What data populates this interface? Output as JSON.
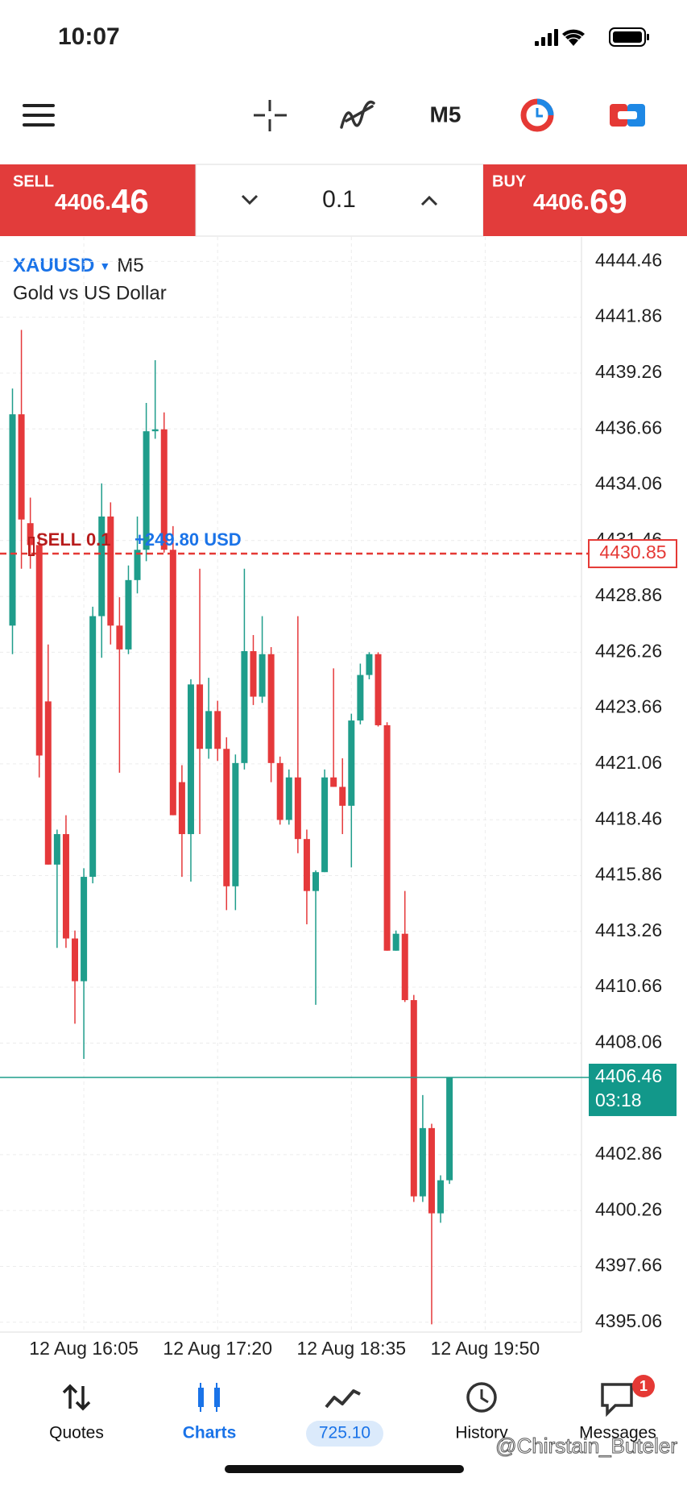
{
  "status": {
    "time": "10:07"
  },
  "toolbar": {
    "timeframe": "M5"
  },
  "trade": {
    "sell_label": "SELL",
    "sell_main": "4406.",
    "sell_pips": "46",
    "lot": "0.1",
    "buy_label": "BUY",
    "buy_main": "4406.",
    "buy_pips": "69"
  },
  "chart_data": {
    "type": "candlestick",
    "symbol": "XAUUSD",
    "timeframe": "M5",
    "subtitle": "Gold vs US Dollar",
    "colors": {
      "up": "#1f9d8b",
      "down": "#e5393b"
    },
    "x": [
      "12 Aug 15:25",
      "12 Aug 15:30",
      "12 Aug 15:35",
      "12 Aug 15:40",
      "12 Aug 15:45",
      "12 Aug 15:50",
      "12 Aug 15:55",
      "12 Aug 16:00",
      "12 Aug 16:05",
      "12 Aug 16:10",
      "12 Aug 16:15",
      "12 Aug 16:20",
      "12 Aug 16:25",
      "12 Aug 16:30",
      "12 Aug 16:35",
      "12 Aug 16:40",
      "12 Aug 16:45",
      "12 Aug 16:50",
      "12 Aug 16:55",
      "12 Aug 17:00",
      "12 Aug 17:05",
      "12 Aug 17:10",
      "12 Aug 17:15",
      "12 Aug 17:20",
      "12 Aug 17:25",
      "12 Aug 17:30",
      "12 Aug 17:35",
      "12 Aug 17:40",
      "12 Aug 17:45",
      "12 Aug 17:50",
      "12 Aug 17:55",
      "12 Aug 18:00",
      "12 Aug 18:05",
      "12 Aug 18:10",
      "12 Aug 18:15",
      "12 Aug 18:20",
      "12 Aug 18:25",
      "12 Aug 18:30",
      "12 Aug 18:35",
      "12 Aug 18:40",
      "12 Aug 18:45",
      "12 Aug 18:50",
      "12 Aug 18:55",
      "12 Aug 19:00",
      "12 Aug 19:05",
      "12 Aug 19:10",
      "12 Aug 19:15",
      "12 Aug 19:20",
      "12 Aug 19:25",
      "12 Aug 19:30"
    ],
    "open": [
      4427.5,
      4437.34,
      4432.27,
      4431.25,
      4423.97,
      4416.37,
      4417.79,
      4412.93,
      4410.94,
      4415.8,
      4427.94,
      4432.58,
      4427.5,
      4426.39,
      4429.62,
      4431.03,
      4436.55,
      4436.64,
      4431.03,
      4420.21,
      4417.79,
      4424.76,
      4421.76,
      4423.52,
      4421.76,
      4415.36,
      4421.1,
      4426.31,
      4424.19,
      4426.17,
      4421.1,
      4418.45,
      4420.43,
      4417.56,
      4415.14,
      4416.02,
      4420.43,
      4419.99,
      4419.11,
      4423.08,
      4425.2,
      4426.17,
      4422.86,
      4412.36,
      4413.15,
      4410.06,
      4400.92,
      4404.1,
      4400.13,
      4401.67
    ],
    "high": [
      4438.54,
      4441.27,
      4433.46,
      4431.8,
      4426.62,
      4418.0,
      4418.67,
      4413.3,
      4416.2,
      4428.38,
      4434.12,
      4433.24,
      4428.82,
      4430.3,
      4432.58,
      4437.87,
      4439.86,
      4437.43,
      4432.13,
      4421.0,
      4425.0,
      4430.15,
      4425.07,
      4424.0,
      4422.3,
      4421.5,
      4430.15,
      4427.06,
      4427.94,
      4426.5,
      4421.4,
      4420.8,
      4427.94,
      4418.0,
      4416.1,
      4420.8,
      4425.51,
      4421.32,
      4423.4,
      4425.73,
      4426.26,
      4426.26,
      4423.0,
      4413.3,
      4415.14,
      4410.3,
      4405.64,
      4404.3,
      4401.9,
      4406.46
    ],
    "low": [
      4426.17,
      4430.15,
      4430.15,
      4420.43,
      4416.37,
      4412.49,
      4412.49,
      4408.96,
      4407.32,
      4415.5,
      4426.0,
      4426.62,
      4420.65,
      4426.17,
      4429.0,
      4430.5,
      4436.2,
      4430.9,
      4418.67,
      4415.8,
      4415.58,
      4417.79,
      4421.3,
      4421.2,
      4414.25,
      4414.25,
      4420.8,
      4423.8,
      4423.9,
      4420.21,
      4418.23,
      4418.23,
      4416.9,
      4413.59,
      4409.84,
      4416.02,
      4419.99,
      4417.79,
      4416.24,
      4422.9,
      4425.0,
      4422.8,
      4412.36,
      4412.36,
      4409.97,
      4400.66,
      4400.66,
      4394.96,
      4399.69,
      4401.5
    ],
    "close": [
      4437.34,
      4432.44,
      4431.25,
      4421.45,
      4416.37,
      4417.79,
      4412.93,
      4410.94,
      4415.8,
      4427.94,
      4432.58,
      4427.5,
      4426.39,
      4429.62,
      4431.03,
      4436.55,
      4436.64,
      4431.03,
      4418.67,
      4417.79,
      4424.76,
      4421.76,
      4423.52,
      4421.76,
      4415.36,
      4421.1,
      4426.31,
      4424.19,
      4426.17,
      4421.1,
      4418.45,
      4420.43,
      4417.56,
      4415.14,
      4416.02,
      4420.43,
      4419.99,
      4419.11,
      4423.08,
      4425.2,
      4426.17,
      4422.86,
      4412.36,
      4413.15,
      4410.06,
      4400.92,
      4404.1,
      4400.13,
      4401.67,
      4406.46
    ],
    "xlim": [
      "12 Aug 15:18",
      "12 Aug 20:44"
    ],
    "xticks": [
      "12 Aug 16:05",
      "12 Aug 17:20",
      "12 Aug 18:35",
      "12 Aug 19:50"
    ],
    "ylim": [
      4394.6,
      4445.6
    ],
    "yticks": [
      4444.46,
      4441.86,
      4439.26,
      4436.66,
      4434.06,
      4431.46,
      4428.86,
      4426.26,
      4423.66,
      4421.06,
      4418.46,
      4415.86,
      4413.26,
      4410.66,
      4408.06,
      4402.86,
      4400.26,
      4397.66,
      4395.06
    ],
    "grid": true,
    "order": {
      "label": "SELL 0.1",
      "price": 4430.85,
      "profit": "+249.80 USD"
    },
    "timer": "03:18"
  },
  "nav": {
    "quotes": "Quotes",
    "charts": "Charts",
    "balance": "725.10",
    "history": "History",
    "messages": "Messages",
    "badge": "1"
  },
  "watermark": "@Chirstain_Buteler"
}
